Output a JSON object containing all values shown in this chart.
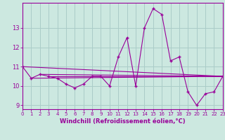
{
  "title": "",
  "xlabel": "Windchill (Refroidissement éolien,°C)",
  "ylabel": "",
  "background_color": "#cce8e0",
  "line_color": "#990099",
  "x_values": [
    0,
    1,
    2,
    3,
    4,
    5,
    6,
    7,
    8,
    9,
    10,
    11,
    12,
    13,
    14,
    15,
    16,
    17,
    18,
    19,
    20,
    21,
    22,
    23
  ],
  "y_values": [
    11.0,
    10.4,
    10.6,
    10.5,
    10.4,
    10.1,
    9.9,
    10.1,
    10.5,
    10.5,
    10.0,
    11.5,
    12.5,
    10.0,
    13.0,
    14.0,
    13.7,
    11.3,
    11.5,
    9.7,
    9.0,
    9.6,
    9.7,
    10.5
  ],
  "xlim": [
    0,
    23
  ],
  "ylim": [
    8.8,
    14.3
  ],
  "yticks": [
    9,
    10,
    11,
    12,
    13
  ],
  "xticks": [
    0,
    1,
    2,
    3,
    4,
    5,
    6,
    7,
    8,
    9,
    10,
    11,
    12,
    13,
    14,
    15,
    16,
    17,
    18,
    19,
    20,
    21,
    22,
    23
  ],
  "grid_color": "#aaccc8",
  "tick_color": "#990099",
  "label_color": "#990099",
  "extra_lines": [
    [
      0,
      23,
      11.0,
      10.5
    ],
    [
      1,
      23,
      10.4,
      10.5
    ],
    [
      2,
      23,
      10.6,
      10.5
    ],
    [
      3,
      23,
      10.5,
      10.5
    ]
  ]
}
